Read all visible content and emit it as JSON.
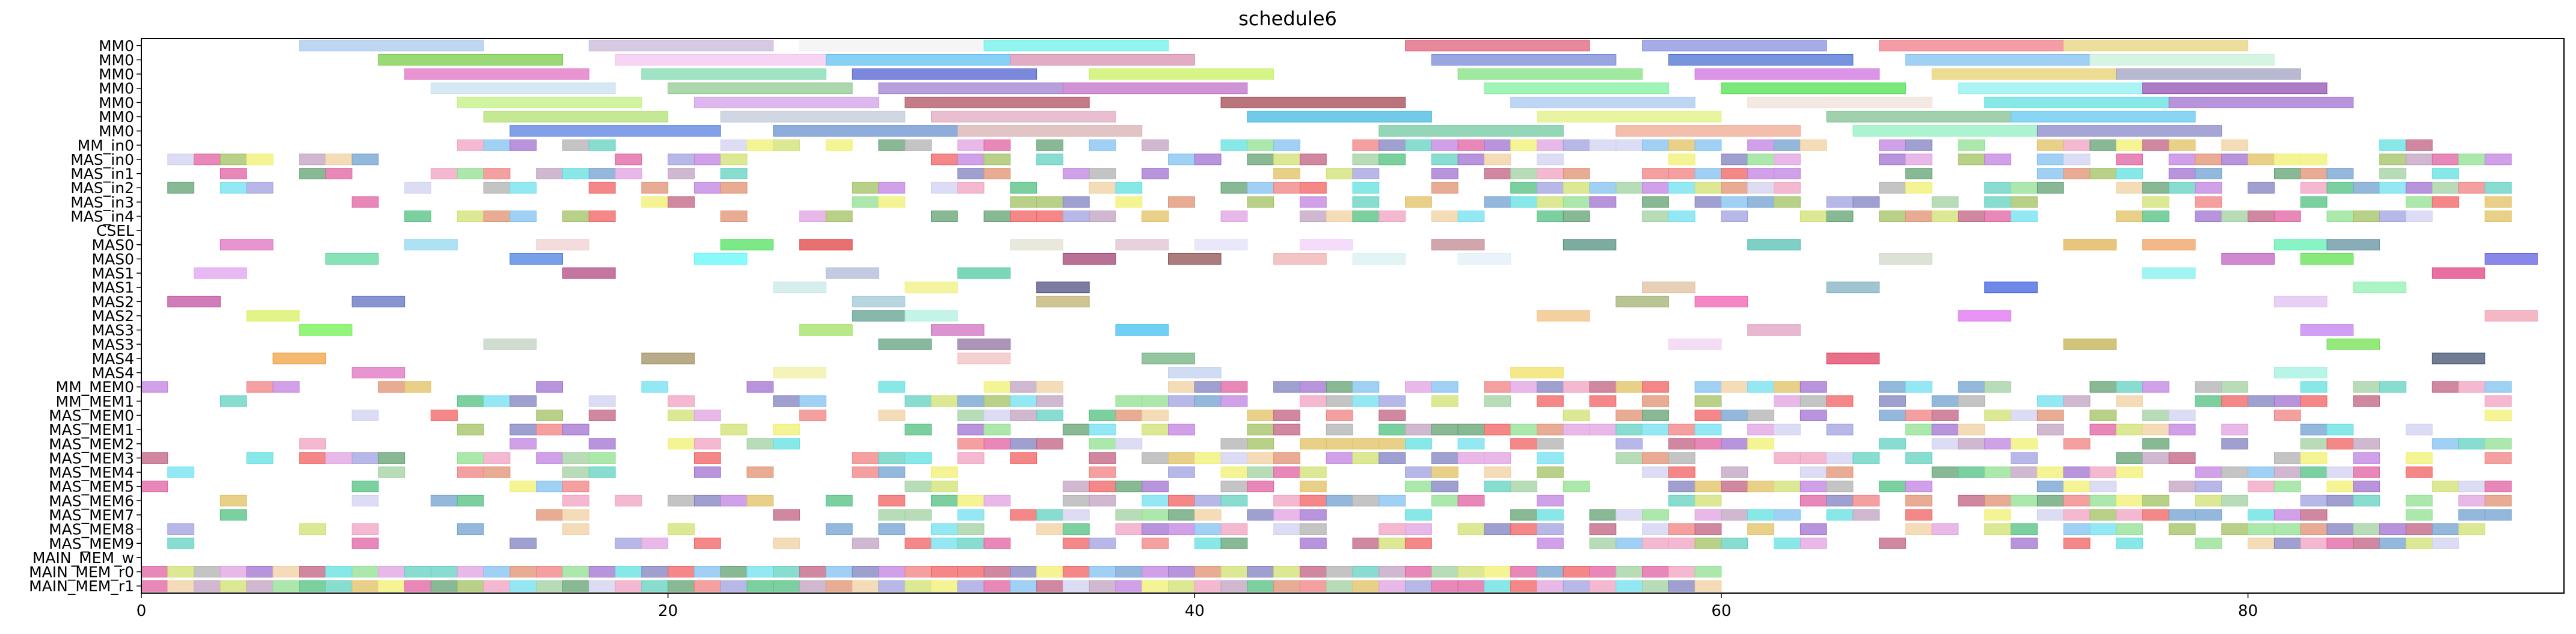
{
  "chart_data": {
    "type": "gantt",
    "title": "schedule6",
    "xlabel": "",
    "ylabel": "",
    "xlim": [
      0,
      92
    ],
    "xticks": [
      0,
      20,
      40,
      60,
      80
    ],
    "grid": false,
    "rows": [
      "MM0",
      "MM0",
      "MM0",
      "MM0",
      "MM0",
      "MM0",
      "MM0",
      "MM_in0",
      "MAS_in0",
      "MAS_in1",
      "MAS_in2",
      "MAS_in3",
      "MAS_in4",
      "CSEL",
      "MAS0",
      "MAS0",
      "MAS1",
      "MAS1",
      "MAS2",
      "MAS2",
      "MAS3",
      "MAS3",
      "MAS4",
      "MAS4",
      "MM_MEM0",
      "MM_MEM1",
      "MAS_MEM0",
      "MAS_MEM1",
      "MAS_MEM2",
      "MAS_MEM3",
      "MAS_MEM4",
      "MAS_MEM5",
      "MAS_MEM6",
      "MAS_MEM7",
      "MAS_MEM8",
      "MAS_MEM9",
      "MAIN_MEM_w",
      "MAIN_MEM_r0",
      "MAIN_MEM_r1"
    ],
    "tasks": [
      {
        "row": 0,
        "start": 6,
        "end": 13,
        "color": "#a8c8ee"
      },
      {
        "row": 0,
        "start": 17,
        "end": 24,
        "color": "#c8b8d8"
      },
      {
        "row": 0,
        "start": 25,
        "end": 32,
        "color": "#f4f0f4"
      },
      {
        "row": 0,
        "start": 32,
        "end": 39,
        "color": "#6ef0e8"
      },
      {
        "row": 0,
        "start": 48,
        "end": 55,
        "color": "#e0607a"
      },
      {
        "row": 0,
        "start": 57,
        "end": 64,
        "color": "#8890e0"
      },
      {
        "row": 0,
        "start": 66,
        "end": 73,
        "color": "#f07c8a"
      },
      {
        "row": 0,
        "start": 73,
        "end": 80,
        "color": "#e6d47a"
      },
      {
        "row": 1,
        "start": 9,
        "end": 16,
        "color": "#7acc4a"
      },
      {
        "row": 1,
        "start": 18,
        "end": 26,
        "color": "#f4c4f0"
      },
      {
        "row": 1,
        "start": 26,
        "end": 33,
        "color": "#60c0f0"
      },
      {
        "row": 1,
        "start": 33,
        "end": 40,
        "color": "#d890b0"
      },
      {
        "row": 1,
        "start": 49,
        "end": 56,
        "color": "#7888d8"
      },
      {
        "row": 1,
        "start": 58,
        "end": 65,
        "color": "#4a70d0"
      },
      {
        "row": 1,
        "start": 67,
        "end": 74,
        "color": "#80c0f0"
      },
      {
        "row": 1,
        "start": 74,
        "end": 81,
        "color": "#c8f0d8"
      },
      {
        "row": 2,
        "start": 10,
        "end": 17,
        "color": "#e070c0"
      },
      {
        "row": 2,
        "start": 19,
        "end": 26,
        "color": "#80d8b0"
      },
      {
        "row": 2,
        "start": 27,
        "end": 34,
        "color": "#5060d0"
      },
      {
        "row": 2,
        "start": 36,
        "end": 43,
        "color": "#c8f060"
      },
      {
        "row": 2,
        "start": 50,
        "end": 57,
        "color": "#80e080"
      },
      {
        "row": 2,
        "start": 59,
        "end": 66,
        "color": "#d070e0"
      },
      {
        "row": 2,
        "start": 68,
        "end": 75,
        "color": "#e6d070"
      },
      {
        "row": 2,
        "start": 75,
        "end": 82,
        "color": "#a0a0c0"
      },
      {
        "row": 3,
        "start": 11,
        "end": 18,
        "color": "#c8e0f0"
      },
      {
        "row": 3,
        "start": 20,
        "end": 27,
        "color": "#90c890"
      },
      {
        "row": 3,
        "start": 28,
        "end": 35,
        "color": "#a080d0"
      },
      {
        "row": 3,
        "start": 35,
        "end": 42,
        "color": "#c070c8"
      },
      {
        "row": 3,
        "start": 51,
        "end": 58,
        "color": "#80f0a0"
      },
      {
        "row": 3,
        "start": 60,
        "end": 67,
        "color": "#50e050"
      },
      {
        "row": 3,
        "start": 69,
        "end": 76,
        "color": "#90f0f0"
      },
      {
        "row": 3,
        "start": 76,
        "end": 83,
        "color": "#9050b0"
      },
      {
        "row": 4,
        "start": 12,
        "end": 19,
        "color": "#c0f080"
      },
      {
        "row": 4,
        "start": 21,
        "end": 28,
        "color": "#d0a0e8"
      },
      {
        "row": 4,
        "start": 29,
        "end": 36,
        "color": "#b05060"
      },
      {
        "row": 4,
        "start": 41,
        "end": 48,
        "color": "#a04850"
      },
      {
        "row": 4,
        "start": 52,
        "end": 59,
        "color": "#a8c8f0"
      },
      {
        "row": 4,
        "start": 61,
        "end": 68,
        "color": "#f0e0d8"
      },
      {
        "row": 4,
        "start": 70,
        "end": 77,
        "color": "#60e0e0"
      },
      {
        "row": 4,
        "start": 77,
        "end": 84,
        "color": "#a070d0"
      },
      {
        "row": 5,
        "start": 13,
        "end": 20,
        "color": "#b0e070"
      },
      {
        "row": 5,
        "start": 22,
        "end": 29,
        "color": "#c0c8d8"
      },
      {
        "row": 5,
        "start": 30,
        "end": 37,
        "color": "#e0a8c0"
      },
      {
        "row": 5,
        "start": 42,
        "end": 49,
        "color": "#40b8e0"
      },
      {
        "row": 5,
        "start": 53,
        "end": 60,
        "color": "#e0f080"
      },
      {
        "row": 5,
        "start": 64,
        "end": 71,
        "color": "#80c090"
      },
      {
        "row": 5,
        "start": 71,
        "end": 78,
        "color": "#60c8f0"
      },
      {
        "row": 6,
        "start": 14,
        "end": 22,
        "color": "#5880e0"
      },
      {
        "row": 6,
        "start": 24,
        "end": 31,
        "color": "#6890d0"
      },
      {
        "row": 6,
        "start": 31,
        "end": 38,
        "color": "#d8b0b0"
      },
      {
        "row": 6,
        "start": 47,
        "end": 54,
        "color": "#70c8a0"
      },
      {
        "row": 6,
        "start": 56,
        "end": 63,
        "color": "#f0a890"
      },
      {
        "row": 6,
        "start": 65,
        "end": 72,
        "color": "#90f0c0"
      },
      {
        "row": 6,
        "start": 72,
        "end": 79,
        "color": "#8888c8"
      },
      {
        "row": 13,
        "start": 0,
        "end": 1,
        "color": "#ffffff"
      },
      {
        "row": 14,
        "start": 3,
        "end": 5,
        "color": "#e070c0"
      },
      {
        "row": 14,
        "start": 10,
        "end": 12,
        "color": "#90d8f0"
      },
      {
        "row": 14,
        "start": 15,
        "end": 17,
        "color": "#f0d0d0"
      },
      {
        "row": 14,
        "start": 22,
        "end": 24,
        "color": "#50e060"
      },
      {
        "row": 14,
        "start": 25,
        "end": 27,
        "color": "#e04040"
      },
      {
        "row": 14,
        "start": 33,
        "end": 35,
        "color": "#e0e0d0"
      },
      {
        "row": 14,
        "start": 37,
        "end": 39,
        "color": "#e0c0d0"
      },
      {
        "row": 14,
        "start": 40,
        "end": 42,
        "color": "#e0e0f8"
      },
      {
        "row": 14,
        "start": 44,
        "end": 46,
        "color": "#f0d0f8"
      },
      {
        "row": 14,
        "start": 49,
        "end": 51,
        "color": "#c08890"
      },
      {
        "row": 14,
        "start": 54,
        "end": 56,
        "color": "#509080"
      },
      {
        "row": 14,
        "start": 61,
        "end": 63,
        "color": "#50c0b0"
      },
      {
        "row": 14,
        "start": 73,
        "end": 75,
        "color": "#e0b050"
      },
      {
        "row": 14,
        "start": 76,
        "end": 78,
        "color": "#f0a060"
      },
      {
        "row": 14,
        "start": 81,
        "end": 83,
        "color": "#60f0b0"
      },
      {
        "row": 14,
        "start": 83,
        "end": 85,
        "color": "#6090a0"
      },
      {
        "row": 15,
        "start": 7,
        "end": 9,
        "color": "#60d8a0"
      },
      {
        "row": 15,
        "start": 14,
        "end": 16,
        "color": "#4a80e0"
      },
      {
        "row": 15,
        "start": 21,
        "end": 23,
        "color": "#60f8f8"
      },
      {
        "row": 15,
        "start": 35,
        "end": 37,
        "color": "#a04070"
      },
      {
        "row": 15,
        "start": 39,
        "end": 41,
        "color": "#905050"
      },
      {
        "row": 15,
        "start": 43,
        "end": 45,
        "color": "#f0b0b0"
      },
      {
        "row": 15,
        "start": 46,
        "end": 48,
        "color": "#d8f0f0"
      },
      {
        "row": 15,
        "start": 50,
        "end": 52,
        "color": "#e0f0f8"
      },
      {
        "row": 15,
        "start": 66,
        "end": 68,
        "color": "#d0d8c8"
      },
      {
        "row": 15,
        "start": 79,
        "end": 81,
        "color": "#c060c0"
      },
      {
        "row": 15,
        "start": 82,
        "end": 84,
        "color": "#60e050"
      },
      {
        "row": 15,
        "start": 89,
        "end": 91,
        "color": "#6060e0"
      },
      {
        "row": 16,
        "start": 2,
        "end": 4,
        "color": "#e0a0f0"
      },
      {
        "row": 16,
        "start": 16,
        "end": 18,
        "color": "#b04880"
      },
      {
        "row": 16,
        "start": 26,
        "end": 28,
        "color": "#b0b8d8"
      },
      {
        "row": 16,
        "start": 31,
        "end": 33,
        "color": "#50c8a0"
      },
      {
        "row": 16,
        "start": 76,
        "end": 78,
        "color": "#80f0f0"
      },
      {
        "row": 16,
        "start": 87,
        "end": 89,
        "color": "#e04080"
      },
      {
        "row": 17,
        "start": 24,
        "end": 26,
        "color": "#c8e8e8"
      },
      {
        "row": 17,
        "start": 29,
        "end": 31,
        "color": "#f0f080"
      },
      {
        "row": 17,
        "start": 34,
        "end": 36,
        "color": "#505080"
      },
      {
        "row": 17,
        "start": 57,
        "end": 59,
        "color": "#e0c0a0"
      },
      {
        "row": 17,
        "start": 64,
        "end": 66,
        "color": "#80b0c0"
      },
      {
        "row": 17,
        "start": 70,
        "end": 72,
        "color": "#4060e0"
      },
      {
        "row": 17,
        "start": 84,
        "end": 86,
        "color": "#90f0b0"
      },
      {
        "row": 18,
        "start": 1,
        "end": 3,
        "color": "#c050a0"
      },
      {
        "row": 18,
        "start": 8,
        "end": 10,
        "color": "#6070c0"
      },
      {
        "row": 18,
        "start": 27,
        "end": 29,
        "color": "#a0c8d8"
      },
      {
        "row": 18,
        "start": 34,
        "end": 36,
        "color": "#c0b070"
      },
      {
        "row": 18,
        "start": 56,
        "end": 58,
        "color": "#a0b070"
      },
      {
        "row": 18,
        "start": 59,
        "end": 61,
        "color": "#f060b0"
      },
      {
        "row": 18,
        "start": 81,
        "end": 83,
        "color": "#e0c0f0"
      },
      {
        "row": 19,
        "start": 4,
        "end": 6,
        "color": "#d8f060"
      },
      {
        "row": 19,
        "start": 27,
        "end": 29,
        "color": "#60a090"
      },
      {
        "row": 19,
        "start": 29,
        "end": 31,
        "color": "#b0f0e0"
      },
      {
        "row": 19,
        "start": 53,
        "end": 55,
        "color": "#f0c080"
      },
      {
        "row": 19,
        "start": 69,
        "end": 71,
        "color": "#e070f0"
      },
      {
        "row": 19,
        "start": 89,
        "end": 91,
        "color": "#f0a0b0"
      },
      {
        "row": 20,
        "start": 6,
        "end": 8,
        "color": "#70f050"
      },
      {
        "row": 20,
        "start": 25,
        "end": 27,
        "color": "#a0e060"
      },
      {
        "row": 20,
        "start": 30,
        "end": 32,
        "color": "#d070c0"
      },
      {
        "row": 20,
        "start": 37,
        "end": 39,
        "color": "#40c0f0"
      },
      {
        "row": 20,
        "start": 61,
        "end": 63,
        "color": "#e0a0c0"
      },
      {
        "row": 20,
        "start": 82,
        "end": 84,
        "color": "#c080f0"
      },
      {
        "row": 21,
        "start": 13,
        "end": 15,
        "color": "#c0d0c0"
      },
      {
        "row": 21,
        "start": 28,
        "end": 30,
        "color": "#60a080"
      },
      {
        "row": 21,
        "start": 31,
        "end": 33,
        "color": "#9070a0"
      },
      {
        "row": 21,
        "start": 58,
        "end": 60,
        "color": "#f0d0f0"
      },
      {
        "row": 21,
        "start": 73,
        "end": 75,
        "color": "#c0b050"
      },
      {
        "row": 21,
        "start": 83,
        "end": 85,
        "color": "#70e050"
      },
      {
        "row": 22,
        "start": 5,
        "end": 7,
        "color": "#f0a040"
      },
      {
        "row": 22,
        "start": 19,
        "end": 21,
        "color": "#a09060"
      },
      {
        "row": 22,
        "start": 31,
        "end": 33,
        "color": "#f0c0c0"
      },
      {
        "row": 22,
        "start": 38,
        "end": 40,
        "color": "#70b080"
      },
      {
        "row": 22,
        "start": 64,
        "end": 66,
        "color": "#e04060"
      },
      {
        "row": 22,
        "start": 87,
        "end": 89,
        "color": "#405070"
      },
      {
        "row": 23,
        "start": 8,
        "end": 10,
        "color": "#e070c0"
      },
      {
        "row": 23,
        "start": 24,
        "end": 26,
        "color": "#f0f0a0"
      },
      {
        "row": 23,
        "start": 39,
        "end": 41,
        "color": "#c0d0f0"
      },
      {
        "row": 23,
        "start": 52,
        "end": 54,
        "color": "#f0e060"
      },
      {
        "row": 23,
        "start": 81,
        "end": 83,
        "color": "#a0f0e0"
      }
    ],
    "dense_start": 0,
    "dense_end": 60,
    "dense_end_wide": 90,
    "dense_rows_full": [
      37,
      38
    ],
    "dense_rows": [
      7,
      8,
      9,
      10,
      11,
      12,
      24,
      25,
      26,
      27,
      28,
      29,
      30,
      31,
      32,
      33,
      34,
      35
    ],
    "palette": [
      "#f08080",
      "#80c0f0",
      "#90e090",
      "#e0c060",
      "#c080e0",
      "#60d0c0",
      "#f0a0c0",
      "#a0a0e0",
      "#d0e070",
      "#70a0d0",
      "#e09070",
      "#a0d0a0",
      "#c0a0c0",
      "#70e0f0",
      "#f0d0a0",
      "#b0b0b0",
      "#e060a0",
      "#60a070",
      "#a070d0",
      "#d0d0f0",
      "#f06060",
      "#50c080",
      "#8080c0",
      "#f0f070",
      "#c06080",
      "#60e0e0",
      "#a0c060",
      "#e0a0e0"
    ]
  }
}
